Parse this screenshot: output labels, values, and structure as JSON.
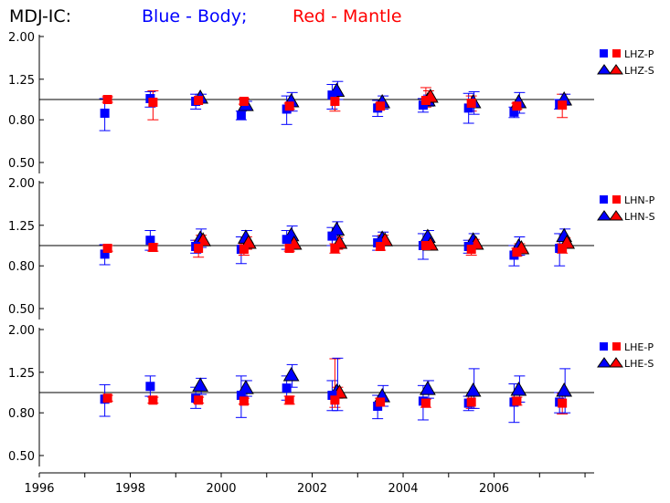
{
  "title": {
    "station": "MDJ-IC:",
    "blue": "Blue - Body;",
    "red": "Red - Mantle",
    "blue_color": "#0000ff",
    "red_color": "#ff0000"
  },
  "chart_data": {
    "type": "scatter",
    "x_ticks": [
      1996,
      1998,
      2000,
      2002,
      2004,
      2006
    ],
    "x_tick_labels": [
      "1996",
      "1998",
      "2000",
      "2002",
      "2004",
      "2006"
    ],
    "xlim": [
      1996,
      2008.2
    ],
    "y_scale": "log",
    "y_ticks": [
      0.5,
      0.8,
      1.25,
      2.0
    ],
    "y_tick_labels": [
      "0.50",
      "0.80",
      "1.25",
      "2.00"
    ],
    "ylim": [
      0.45,
      2.05
    ],
    "reference_line": 1.0,
    "colors": {
      "body": "#0000ff",
      "mantle": "#ff0000"
    },
    "panels": [
      {
        "legend": [
          "LHZ-P",
          "LHZ-S"
        ],
        "body_p": [
          {
            "x": 1997.5,
            "y": 0.86,
            "lo": 0.71,
            "hi": 1.01
          },
          {
            "x": 1998.5,
            "y": 1.01,
            "lo": 0.92,
            "hi": 1.09
          },
          {
            "x": 1999.5,
            "y": 0.98,
            "lo": 0.9,
            "hi": 1.06
          },
          {
            "x": 2000.5,
            "y": 0.84,
            "lo": 0.8,
            "hi": 0.88
          },
          {
            "x": 2001.5,
            "y": 0.9,
            "lo": 0.76,
            "hi": 1.04
          },
          {
            "x": 2002.5,
            "y": 1.05,
            "lo": 0.9,
            "hi": 1.18
          },
          {
            "x": 2003.5,
            "y": 0.91,
            "lo": 0.83,
            "hi": 0.99
          },
          {
            "x": 2004.5,
            "y": 0.94,
            "lo": 0.87,
            "hi": 1.01
          },
          {
            "x": 2005.5,
            "y": 0.91,
            "lo": 0.77,
            "hi": 1.07
          },
          {
            "x": 2006.5,
            "y": 0.87,
            "lo": 0.82,
            "hi": 0.92
          },
          {
            "x": 2007.5,
            "y": 0.95,
            "lo": 0.9,
            "hi": 1.0
          }
        ],
        "mantle_p": [
          {
            "x": 1997.5,
            "y": 1.0,
            "lo": 0.97,
            "hi": 1.03
          },
          {
            "x": 1998.5,
            "y": 0.97,
            "lo": 0.8,
            "hi": 1.1
          },
          {
            "x": 1999.5,
            "y": 0.99,
            "lo": 0.96,
            "hi": 1.02
          },
          {
            "x": 2000.5,
            "y": 0.98,
            "lo": 0.95,
            "hi": 1.01
          },
          {
            "x": 2001.5,
            "y": 0.93,
            "lo": 0.9,
            "hi": 0.96
          },
          {
            "x": 2002.5,
            "y": 0.98,
            "lo": 0.88,
            "hi": 1.08
          },
          {
            "x": 2003.5,
            "y": 0.93,
            "lo": 0.9,
            "hi": 0.96
          },
          {
            "x": 2004.5,
            "y": 0.99,
            "lo": 0.92,
            "hi": 1.14
          },
          {
            "x": 2005.5,
            "y": 0.96,
            "lo": 0.88,
            "hi": 1.04
          },
          {
            "x": 2006.5,
            "y": 0.93,
            "lo": 0.9,
            "hi": 0.96
          },
          {
            "x": 2007.5,
            "y": 0.94,
            "lo": 0.82,
            "hi": 1.06
          }
        ],
        "body_s": [
          {
            "x": 1999.5,
            "y": 1.02,
            "lo": 0.98,
            "hi": 1.06
          },
          {
            "x": 2000.5,
            "y": 0.94,
            "lo": 0.9,
            "hi": 0.98
          },
          {
            "x": 2001.5,
            "y": 0.98,
            "lo": 0.88,
            "hi": 1.08
          },
          {
            "x": 2002.5,
            "y": 1.1,
            "lo": 1.0,
            "hi": 1.22
          },
          {
            "x": 2003.5,
            "y": 0.97,
            "lo": 0.9,
            "hi": 1.04
          },
          {
            "x": 2004.5,
            "y": 0.99,
            "lo": 0.93,
            "hi": 1.05
          },
          {
            "x": 2005.5,
            "y": 0.97,
            "lo": 0.85,
            "hi": 1.09
          },
          {
            "x": 2006.5,
            "y": 0.97,
            "lo": 0.86,
            "hi": 1.08
          },
          {
            "x": 2007.5,
            "y": 1.0,
            "lo": 0.94,
            "hi": 1.06
          }
        ],
        "mantle_s": [
          {
            "x": 2004.5,
            "y": 1.03,
            "lo": 0.96,
            "hi": 1.1
          }
        ]
      },
      {
        "legend": [
          "LHN-P",
          "LHN-S"
        ],
        "body_p": [
          {
            "x": 1997.5,
            "y": 0.91,
            "lo": 0.81,
            "hi": 1.01
          },
          {
            "x": 1998.5,
            "y": 1.06,
            "lo": 0.95,
            "hi": 1.18
          },
          {
            "x": 1999.5,
            "y": 0.99,
            "lo": 0.92,
            "hi": 1.06
          },
          {
            "x": 2000.5,
            "y": 0.96,
            "lo": 0.82,
            "hi": 1.1
          },
          {
            "x": 2001.5,
            "y": 1.07,
            "lo": 0.96,
            "hi": 1.18
          },
          {
            "x": 2002.5,
            "y": 1.11,
            "lo": 1.0,
            "hi": 1.22
          },
          {
            "x": 2003.5,
            "y": 1.03,
            "lo": 0.95,
            "hi": 1.11
          },
          {
            "x": 2004.5,
            "y": 1.0,
            "lo": 0.86,
            "hi": 1.14
          },
          {
            "x": 2005.5,
            "y": 0.99,
            "lo": 0.92,
            "hi": 1.06
          },
          {
            "x": 2006.5,
            "y": 0.9,
            "lo": 0.8,
            "hi": 1.0
          },
          {
            "x": 2007.5,
            "y": 0.97,
            "lo": 0.8,
            "hi": 1.14
          }
        ],
        "mantle_p": [
          {
            "x": 1997.5,
            "y": 0.97,
            "lo": 0.94,
            "hi": 1.0
          },
          {
            "x": 1998.5,
            "y": 0.98,
            "lo": 0.94,
            "hi": 1.02
          },
          {
            "x": 1999.5,
            "y": 0.97,
            "lo": 0.88,
            "hi": 1.06
          },
          {
            "x": 2000.5,
            "y": 0.96,
            "lo": 0.9,
            "hi": 1.02
          },
          {
            "x": 2001.5,
            "y": 0.97,
            "lo": 0.94,
            "hi": 1.0
          },
          {
            "x": 2002.5,
            "y": 0.97,
            "lo": 0.92,
            "hi": 1.02
          },
          {
            "x": 2003.5,
            "y": 0.99,
            "lo": 0.95,
            "hi": 1.03
          },
          {
            "x": 2004.5,
            "y": 1.0,
            "lo": 0.96,
            "hi": 1.04
          },
          {
            "x": 2005.5,
            "y": 0.96,
            "lo": 0.9,
            "hi": 1.02
          },
          {
            "x": 2006.5,
            "y": 0.93,
            "lo": 0.89,
            "hi": 0.97
          },
          {
            "x": 2007.5,
            "y": 0.97,
            "lo": 0.92,
            "hi": 1.02
          }
        ],
        "body_s": [
          {
            "x": 1999.5,
            "y": 1.08,
            "lo": 0.98,
            "hi": 1.2
          },
          {
            "x": 2000.5,
            "y": 1.09,
            "lo": 1.0,
            "hi": 1.18
          },
          {
            "x": 2001.5,
            "y": 1.12,
            "lo": 1.0,
            "hi": 1.24
          },
          {
            "x": 2002.5,
            "y": 1.19,
            "lo": 1.08,
            "hi": 1.3
          },
          {
            "x": 2003.5,
            "y": 1.08,
            "lo": 1.0,
            "hi": 1.16
          },
          {
            "x": 2004.5,
            "y": 1.1,
            "lo": 1.02,
            "hi": 1.18
          },
          {
            "x": 2005.5,
            "y": 1.06,
            "lo": 0.98,
            "hi": 1.14
          },
          {
            "x": 2006.5,
            "y": 0.99,
            "lo": 0.9,
            "hi": 1.1
          },
          {
            "x": 2007.5,
            "y": 1.11,
            "lo": 1.02,
            "hi": 1.2
          }
        ],
        "mantle_s": [
          {
            "x": 1999.5,
            "y": 1.06,
            "lo": 1.0,
            "hi": 1.12
          },
          {
            "x": 2000.5,
            "y": 1.03,
            "lo": 0.96,
            "hi": 1.1
          },
          {
            "x": 2001.5,
            "y": 1.02,
            "lo": 0.96,
            "hi": 1.08
          },
          {
            "x": 2002.5,
            "y": 1.03,
            "lo": 0.96,
            "hi": 1.1
          },
          {
            "x": 2003.5,
            "y": 1.06,
            "lo": 1.0,
            "hi": 1.12
          },
          {
            "x": 2004.5,
            "y": 1.01,
            "lo": 0.96,
            "hi": 1.06
          },
          {
            "x": 2005.5,
            "y": 1.02,
            "lo": 0.97,
            "hi": 1.07
          },
          {
            "x": 2006.5,
            "y": 0.97,
            "lo": 0.92,
            "hi": 1.02
          },
          {
            "x": 2007.5,
            "y": 1.03,
            "lo": 0.97,
            "hi": 1.09
          }
        ]
      },
      {
        "legend": [
          "LHE-P",
          "LHE-S"
        ],
        "body_p": [
          {
            "x": 1997.5,
            "y": 0.93,
            "lo": 0.77,
            "hi": 1.09
          },
          {
            "x": 1998.5,
            "y": 1.07,
            "lo": 0.96,
            "hi": 1.2
          },
          {
            "x": 1999.5,
            "y": 0.94,
            "lo": 0.84,
            "hi": 1.06
          },
          {
            "x": 2000.5,
            "y": 0.97,
            "lo": 0.76,
            "hi": 1.2
          },
          {
            "x": 2001.5,
            "y": 1.05,
            "lo": 0.92,
            "hi": 1.2
          },
          {
            "x": 2002.5,
            "y": 0.97,
            "lo": 0.82,
            "hi": 1.14
          },
          {
            "x": 2003.5,
            "y": 0.86,
            "lo": 0.75,
            "hi": 0.97
          },
          {
            "x": 2004.5,
            "y": 0.91,
            "lo": 0.74,
            "hi": 1.08
          },
          {
            "x": 2005.5,
            "y": 0.89,
            "lo": 0.82,
            "hi": 0.96
          },
          {
            "x": 2006.5,
            "y": 0.9,
            "lo": 0.72,
            "hi": 1.1
          },
          {
            "x": 2007.5,
            "y": 0.9,
            "lo": 0.8,
            "hi": 1.0
          }
        ],
        "mantle_p": [
          {
            "x": 1997.5,
            "y": 0.94,
            "lo": 0.91,
            "hi": 0.97
          },
          {
            "x": 1998.5,
            "y": 0.92,
            "lo": 0.89,
            "hi": 0.95
          },
          {
            "x": 1999.5,
            "y": 0.92,
            "lo": 0.89,
            "hi": 0.95
          },
          {
            "x": 2000.5,
            "y": 0.91,
            "lo": 0.88,
            "hi": 0.94
          },
          {
            "x": 2001.5,
            "y": 0.92,
            "lo": 0.88,
            "hi": 0.96
          },
          {
            "x": 2002.5,
            "y": 0.92,
            "lo": 0.85,
            "hi": 1.45
          },
          {
            "x": 2003.5,
            "y": 0.9,
            "lo": 0.86,
            "hi": 0.94
          },
          {
            "x": 2004.5,
            "y": 0.89,
            "lo": 0.85,
            "hi": 0.93
          },
          {
            "x": 2005.5,
            "y": 0.9,
            "lo": 0.84,
            "hi": 0.96
          },
          {
            "x": 2006.5,
            "y": 0.91,
            "lo": 0.87,
            "hi": 0.95
          },
          {
            "x": 2007.5,
            "y": 0.89,
            "lo": 0.79,
            "hi": 0.99
          }
        ],
        "body_s": [
          {
            "x": 1999.5,
            "y": 1.08,
            "lo": 0.98,
            "hi": 1.17
          },
          {
            "x": 2000.5,
            "y": 1.05,
            "lo": 0.96,
            "hi": 1.14
          },
          {
            "x": 2001.5,
            "y": 1.21,
            "lo": 1.06,
            "hi": 1.36
          },
          {
            "x": 2002.5,
            "y": 1.01,
            "lo": 0.82,
            "hi": 1.46
          },
          {
            "x": 2003.5,
            "y": 0.96,
            "lo": 0.86,
            "hi": 1.08
          },
          {
            "x": 2004.5,
            "y": 1.04,
            "lo": 0.94,
            "hi": 1.14
          },
          {
            "x": 2005.5,
            "y": 1.02,
            "lo": 0.84,
            "hi": 1.3
          },
          {
            "x": 2006.5,
            "y": 1.03,
            "lo": 0.9,
            "hi": 1.2
          },
          {
            "x": 2007.5,
            "y": 1.02,
            "lo": 0.8,
            "hi": 1.3
          }
        ],
        "mantle_s": [
          {
            "x": 2002.5,
            "y": 1.0,
            "lo": 0.94,
            "hi": 1.06
          }
        ]
      }
    ]
  }
}
